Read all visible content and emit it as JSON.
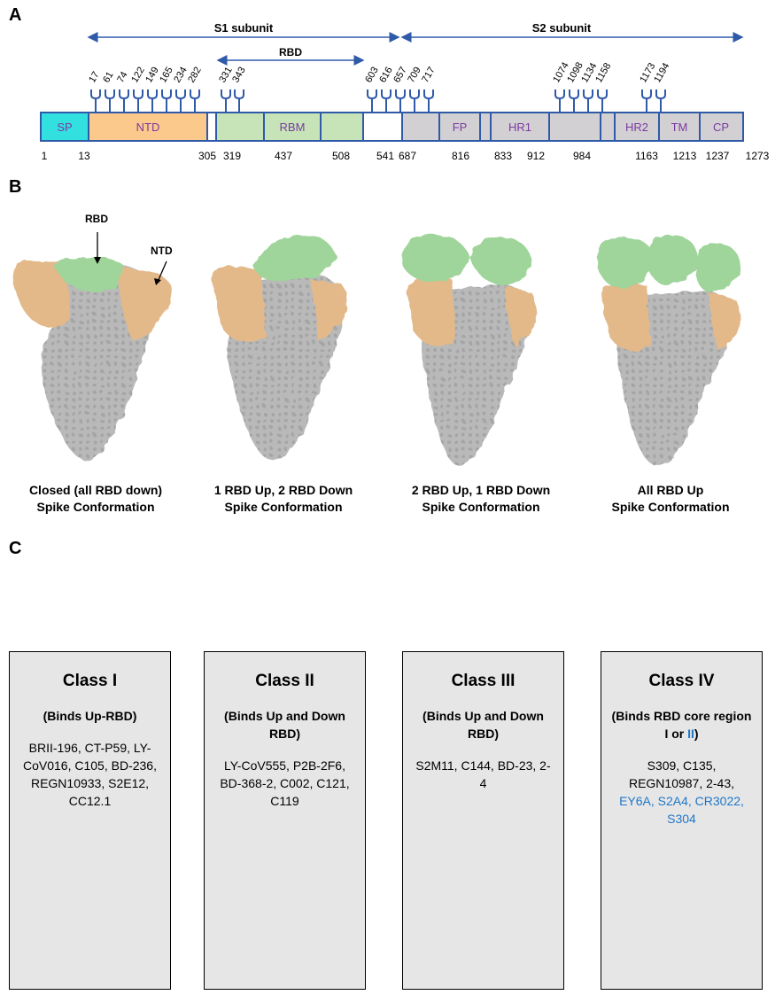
{
  "panels": {
    "a": "A",
    "b": "B",
    "c": "C"
  },
  "panel_a": {
    "s1_label": "S1 subunit",
    "s2_label": "S2 subunit",
    "rbd_label": "RBD",
    "domains": [
      {
        "label": "SP",
        "color": "#33e0e0",
        "text_color": "#7a3aa0"
      },
      {
        "label": "NTD",
        "color": "#fbc98b",
        "text_color": "#7a3aa0"
      },
      {
        "label": "RBM",
        "color": "#c6e4b8",
        "text_color": "#7a3aa0"
      },
      {
        "label": "FP",
        "color": "#d3d0d3",
        "text_color": "#7a3aa0"
      },
      {
        "label": "HR1",
        "color": "#d3d0d3",
        "text_color": "#7a3aa0"
      },
      {
        "label": "HR2",
        "color": "#d3d0d3",
        "text_color": "#7a3aa0"
      },
      {
        "label": "TM",
        "color": "#d3d0d3",
        "text_color": "#7a3aa0"
      },
      {
        "label": "CP",
        "color": "#d3d0d3",
        "text_color": "#7a3aa0"
      }
    ],
    "glycan_sites": [
      "17",
      "61",
      "74",
      "122",
      "149",
      "165",
      "234",
      "282",
      "331",
      "343",
      "603",
      "616",
      "657",
      "709",
      "717",
      "1074",
      "1098",
      "1134",
      "1158",
      "1173",
      "1194"
    ],
    "residue_numbers": [
      "1",
      "13",
      "305",
      "319",
      "437",
      "508",
      "541",
      "687",
      "816",
      "833",
      "912",
      "984",
      "1163",
      "1213",
      "1237",
      "1273"
    ],
    "line_color": "#2f5aa8"
  },
  "panel_b": {
    "rbd_arrow_label": "RBD",
    "ntd_arrow_label": "NTD",
    "conformations": [
      {
        "line1": "Closed (all RBD down)",
        "line2": "Spike Conformation"
      },
      {
        "line1": "1 RBD Up, 2 RBD Down",
        "line2": "Spike Conformation"
      },
      {
        "line1": "2 RBD Up, 1 RBD Down",
        "line2": "Spike Conformation"
      },
      {
        "line1": "All RBD Up",
        "line2": "Spike Conformation"
      }
    ],
    "colors": {
      "rbd": "#9fd49a",
      "ntd": "#e3b98a",
      "core": "#b8b8b8"
    }
  },
  "panel_c": {
    "classes": [
      {
        "title": "Class I",
        "sub": "(Binds Up-RBD)",
        "antibodies": "BRII-196, CT-P59, LY-CoV016, C105, BD-236, REGN10933, S2E12, CC12.1",
        "antibodies_blue": ""
      },
      {
        "title": "Class II",
        "sub": "(Binds Up and Down RBD)",
        "antibodies": "LY-CoV555, P2B-2F6, BD-368-2, C002, C121, C119",
        "antibodies_blue": ""
      },
      {
        "title": "Class III",
        "sub": "(Binds Up and Down RBD)",
        "antibodies": "S2M11, C144, BD-23, 2-4",
        "antibodies_blue": ""
      },
      {
        "title": "Class IV",
        "sub_a": "(Binds RBD core region I or ",
        "sub_b": "II",
        "sub_c": ")",
        "antibodies": "S309, C135, REGN10987, 2-43,",
        "antibodies_blue": "EY6A, S2A4, CR3022, S304"
      }
    ],
    "colors": {
      "rbd": "#9fd49a",
      "epitope": "#e00000",
      "heavy": "#d020d0",
      "light": "#2f6ab0"
    }
  }
}
